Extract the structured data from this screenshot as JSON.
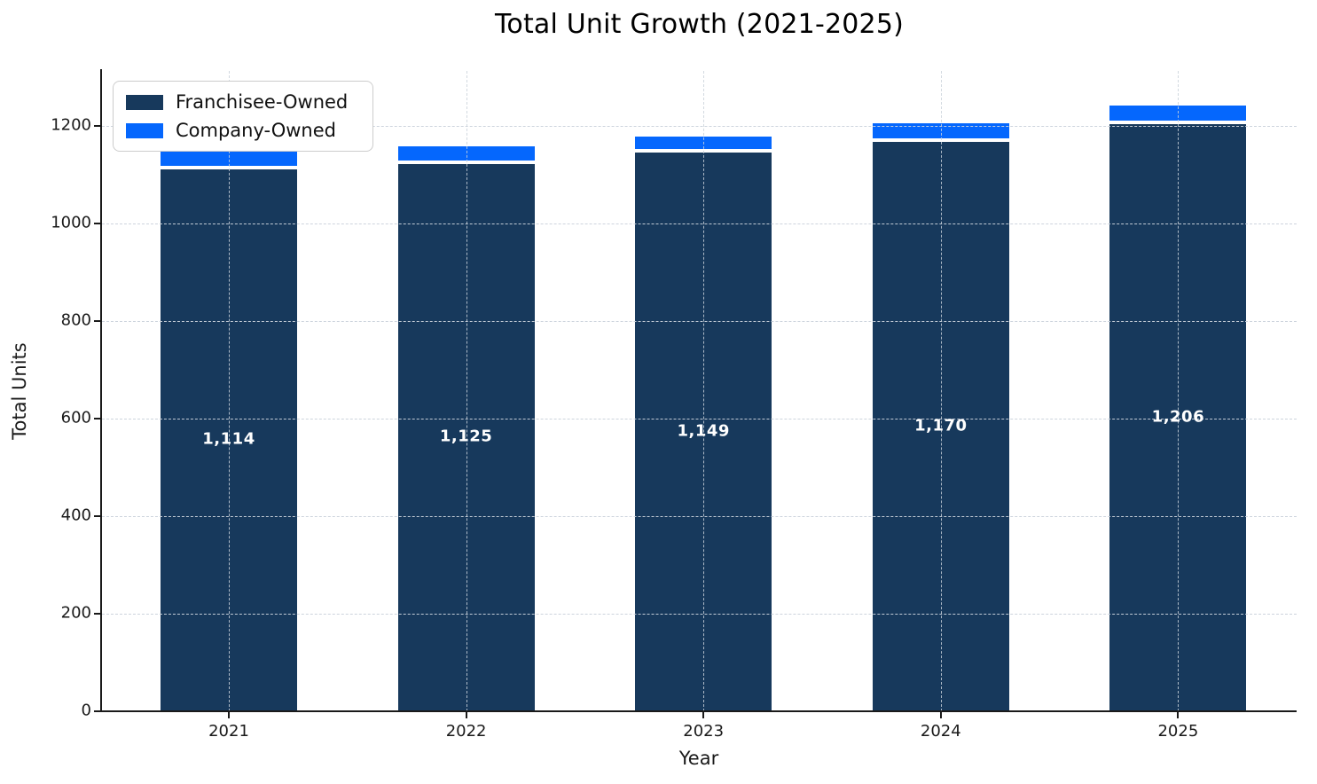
{
  "chart_data": {
    "type": "bar",
    "stacked": true,
    "title": "Total Unit Growth (2021-2025)",
    "xlabel": "Year",
    "ylabel": "Total Units",
    "categories": [
      "2021",
      "2022",
      "2023",
      "2024",
      "2025"
    ],
    "series": [
      {
        "name": "Franchisee-Owned",
        "color": "#17395c",
        "values": [
          1114,
          1125,
          1149,
          1170,
          1206
        ],
        "labels": [
          "1,114",
          "1,125",
          "1,149",
          "1,170",
          "1,206"
        ]
      },
      {
        "name": "Company-Owned",
        "color": "#0567fd",
        "values": [
          36,
          36,
          32,
          39,
          38
        ]
      }
    ],
    "totals": [
      1150,
      1161,
      1181,
      1209,
      1244
    ],
    "ylim": [
      0,
      1312
    ],
    "yticks": [
      0,
      200,
      400,
      600,
      800,
      1000,
      1200
    ],
    "grid": true,
    "grid_style": "dashed",
    "legend_position": "upper left",
    "bar_label_color": "#ffffff"
  }
}
